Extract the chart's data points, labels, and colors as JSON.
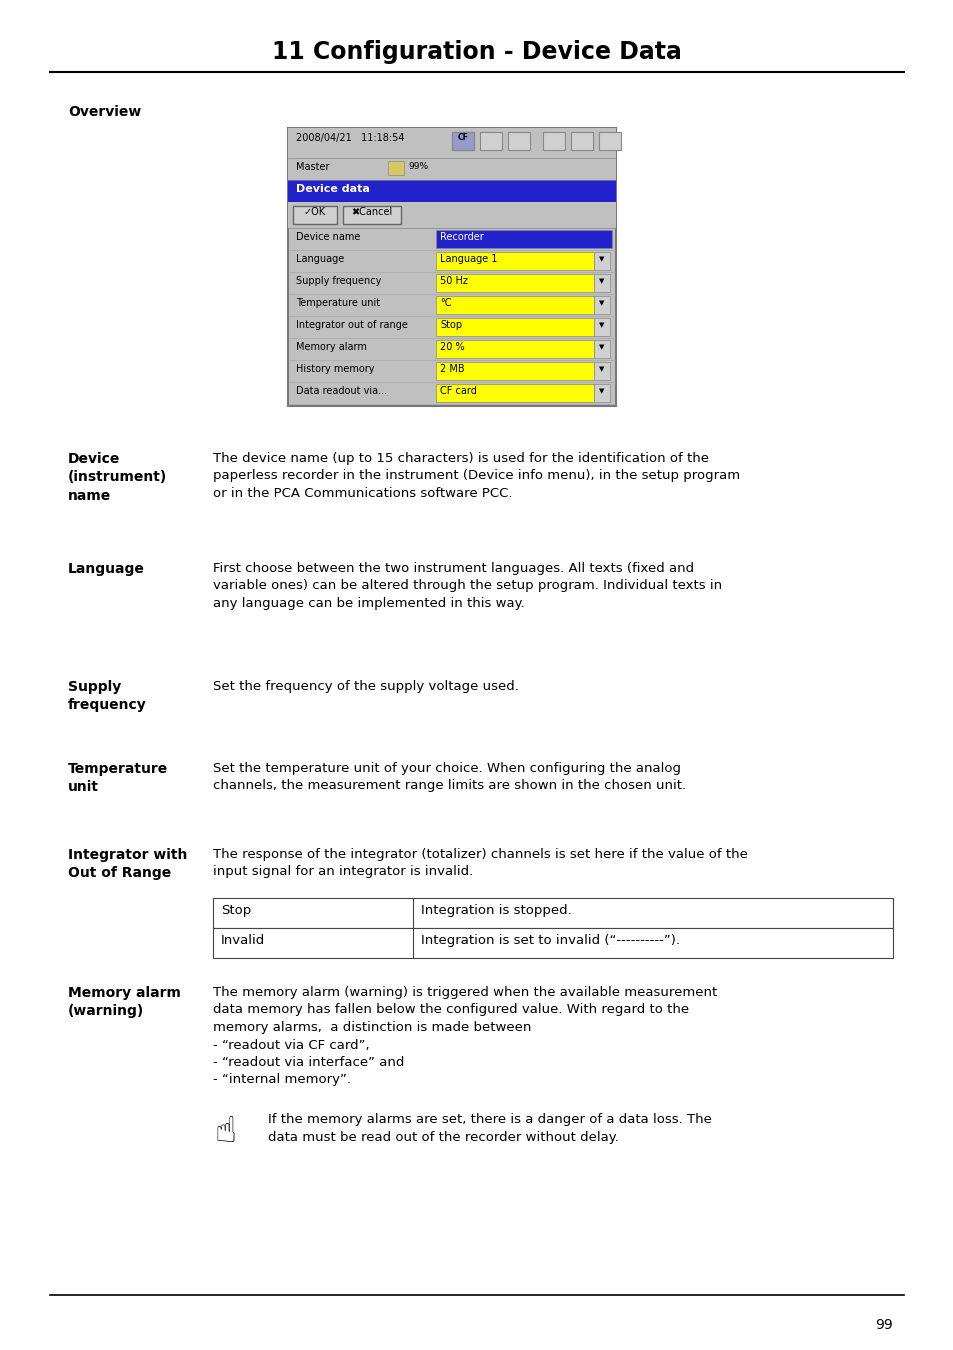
{
  "title": "11 Configuration - Device Data",
  "background_color": "#ffffff",
  "page_number": "99",
  "overview_label": "Overview",
  "screen_rows": [
    {
      "label": "Device name",
      "value": "Recorder",
      "value_color": "blue"
    },
    {
      "label": "Language",
      "value": "Language 1",
      "value_color": "yellow"
    },
    {
      "label": "Supply frequency",
      "value": "50 Hz",
      "value_color": "yellow"
    },
    {
      "label": "Temperature unit",
      "value": "°C",
      "value_color": "yellow"
    },
    {
      "label": "Integrator out of range",
      "value": "Stop",
      "value_color": "yellow"
    },
    {
      "label": "Memory alarm",
      "value": "20 %",
      "value_color": "yellow"
    },
    {
      "label": "History memory",
      "value": "2 MB",
      "value_color": "yellow"
    },
    {
      "label": "Data readout via...",
      "value": "CF card",
      "value_color": "yellow"
    }
  ],
  "sections": [
    {
      "label": "Device\n(instrument)\nname",
      "text": "The device name (up to 15 characters) is used for the identification of the\npaperless recorder in the instrument (Device info menu), in the setup program\nor in the PCA Communications software PCC."
    },
    {
      "label": "Language",
      "text": "First choose between the two instrument languages. All texts (fixed and\nvariable ones) can be altered through the setup program. Individual texts in\nany language can be implemented in this way."
    },
    {
      "label": "Supply\nfrequency",
      "text": "Set the frequency of the supply voltage used."
    },
    {
      "label": "Temperature\nunit",
      "text": "Set the temperature unit of your choice. When configuring the analog\nchannels, the measurement range limits are shown in the chosen unit."
    },
    {
      "label": "Integrator with\nOut of Range",
      "text": "The response of the integrator (totalizer) channels is set here if the value of the\ninput signal for an integrator is invalid."
    }
  ],
  "table_rows": [
    {
      "col1": "Stop",
      "col2": "Integration is stopped."
    },
    {
      "col1": "Invalid",
      "col2": "Integration is set to invalid (“----------”)."
    }
  ],
  "memory_alarm_label": "Memory alarm\n(warning)",
  "memory_alarm_lines": [
    "The memory alarm (warning) is triggered when the available measurement",
    "data memory has fallen below the configured value. With regard to the",
    "memory alarms,  a distinction is made between",
    "- “readout via CF card”,",
    "- “readout via interface” and",
    "- “internal memory”."
  ],
  "note_line1": "If the memory alarms are set, there is a danger of a data loss. The",
  "note_line2": "data must be read out of the recorder without delay."
}
